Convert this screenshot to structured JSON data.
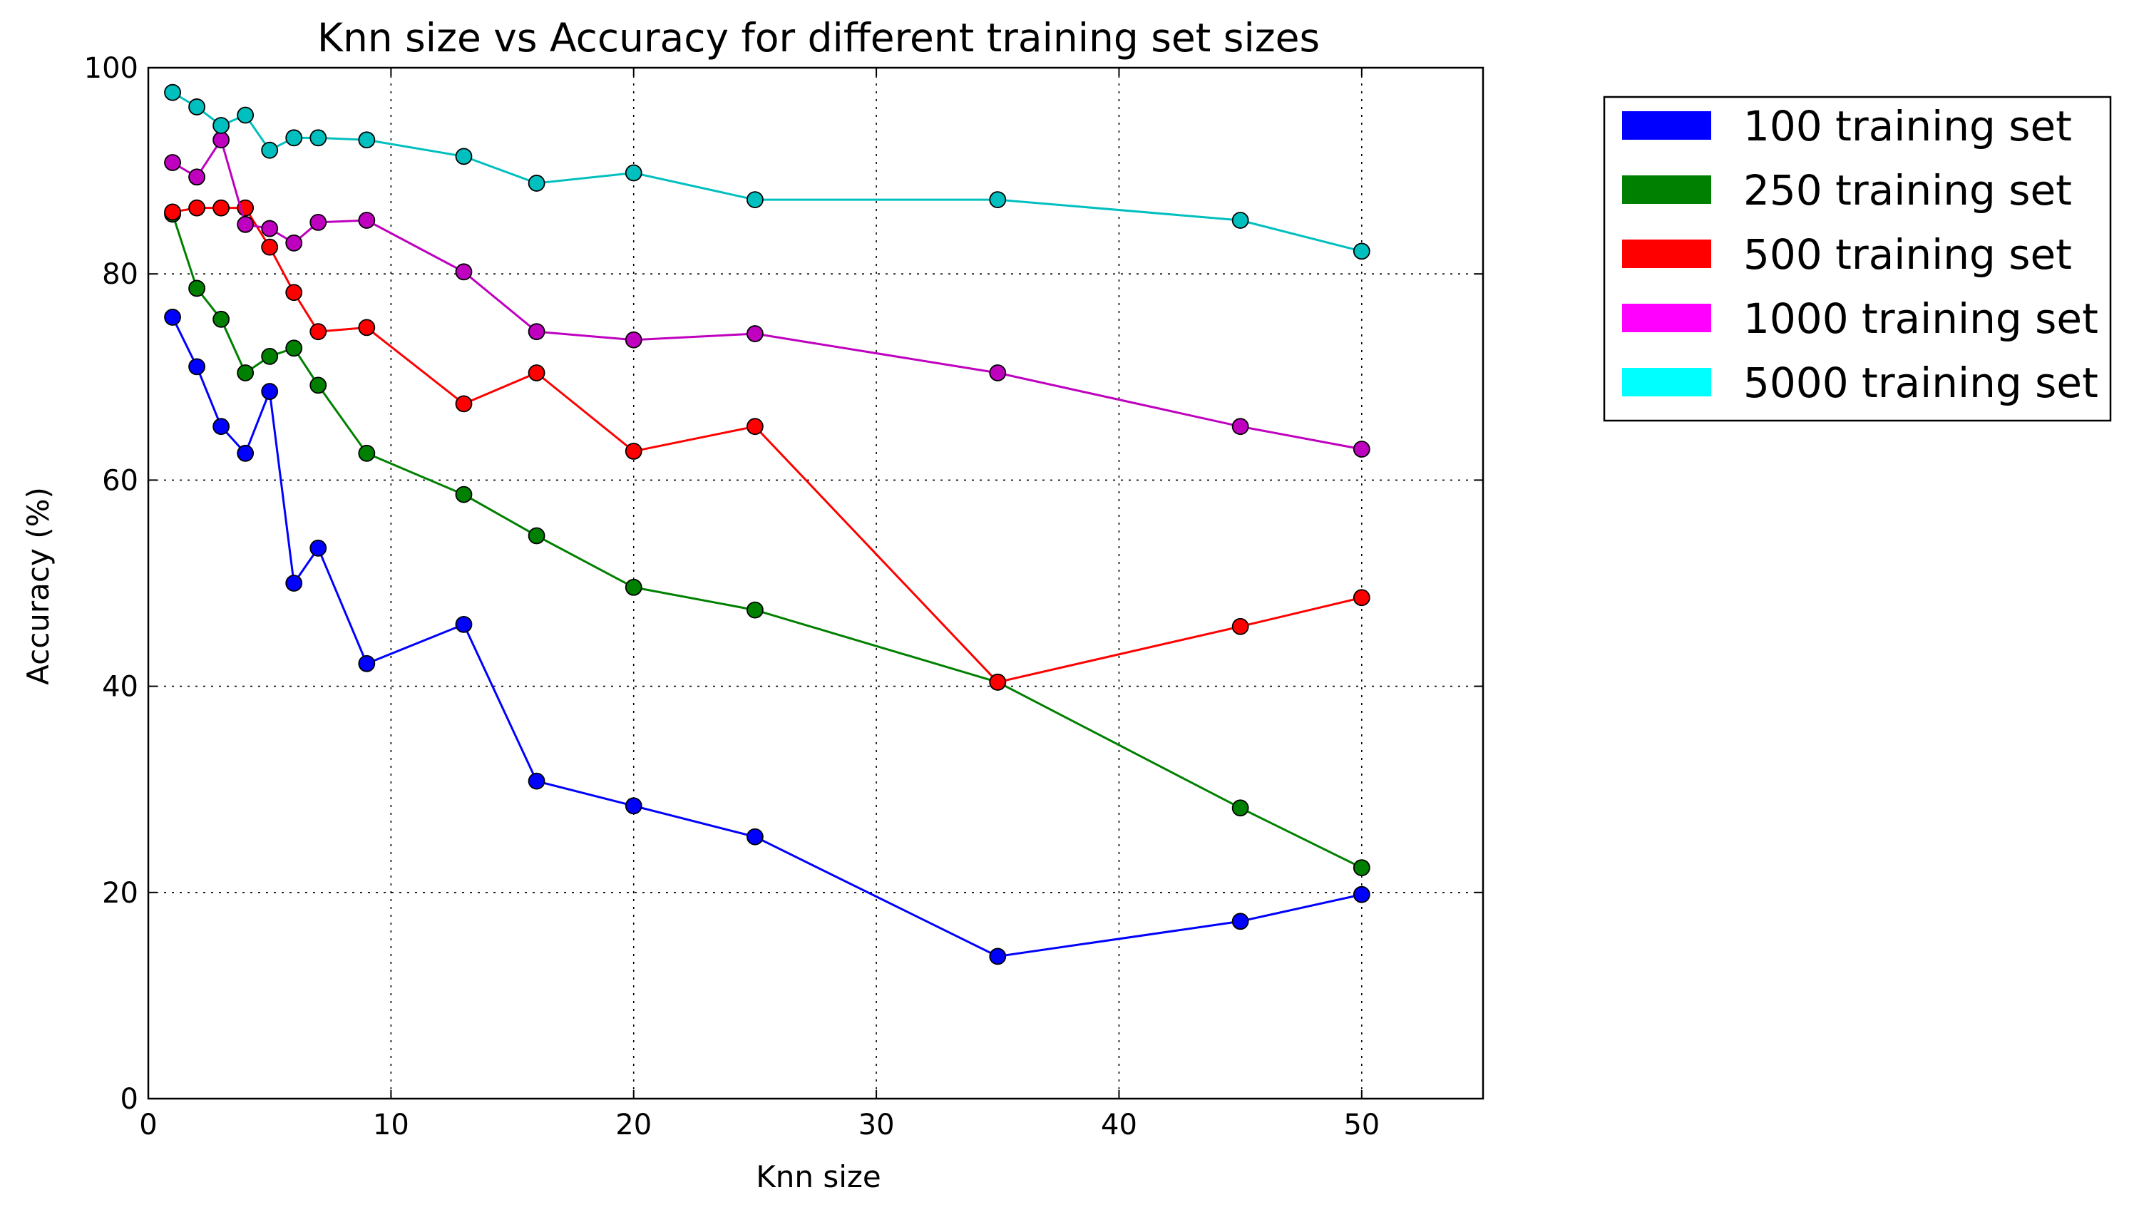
{
  "chart_data": {
    "type": "line",
    "title": "Knn size vs Accuracy for different training set sizes",
    "xlabel": "Knn size",
    "ylabel": "Accuracy (%)",
    "xlim": [
      0,
      55
    ],
    "ylim": [
      0,
      100
    ],
    "x_ticks": [
      0,
      10,
      20,
      30,
      40,
      50
    ],
    "y_ticks": [
      0,
      20,
      40,
      60,
      80,
      100
    ],
    "grid": true,
    "legend_position": "outside-right-top",
    "x": [
      1,
      2,
      3,
      4,
      5,
      6,
      7,
      9,
      13,
      16,
      20,
      25,
      35,
      45,
      50
    ],
    "series": [
      {
        "name": "100 training set",
        "color": "#0000ff",
        "values": [
          75.8,
          71.0,
          65.2,
          62.6,
          68.6,
          50.0,
          53.4,
          42.2,
          46.0,
          30.8,
          28.4,
          25.4,
          13.8,
          17.2,
          19.8
        ]
      },
      {
        "name": "250 training set",
        "color": "#008000",
        "values": [
          85.8,
          78.6,
          75.6,
          70.4,
          72.0,
          72.8,
          69.2,
          62.6,
          58.6,
          54.6,
          49.6,
          47.4,
          40.4,
          28.2,
          22.4
        ]
      },
      {
        "name": "500 training set",
        "color": "#ff0000",
        "values": [
          86.0,
          86.4,
          86.4,
          86.4,
          82.6,
          78.2,
          74.4,
          74.8,
          67.4,
          70.4,
          62.8,
          65.2,
          40.4,
          45.8,
          48.6
        ]
      },
      {
        "name": "1000 training set",
        "color": "#bf00bf",
        "legend_color": "#ff00ff",
        "values": [
          90.8,
          89.4,
          93.0,
          84.8,
          84.4,
          83.0,
          85.0,
          85.2,
          80.2,
          74.4,
          73.6,
          74.2,
          70.4,
          65.2,
          63.0
        ]
      },
      {
        "name": "5000 training set",
        "color": "#00bfbf",
        "legend_color": "#00ffff",
        "values": [
          97.6,
          96.2,
          94.4,
          95.4,
          92.0,
          93.2,
          93.2,
          93.0,
          91.4,
          88.8,
          89.8,
          87.2,
          87.2,
          85.2,
          82.2
        ]
      }
    ]
  }
}
